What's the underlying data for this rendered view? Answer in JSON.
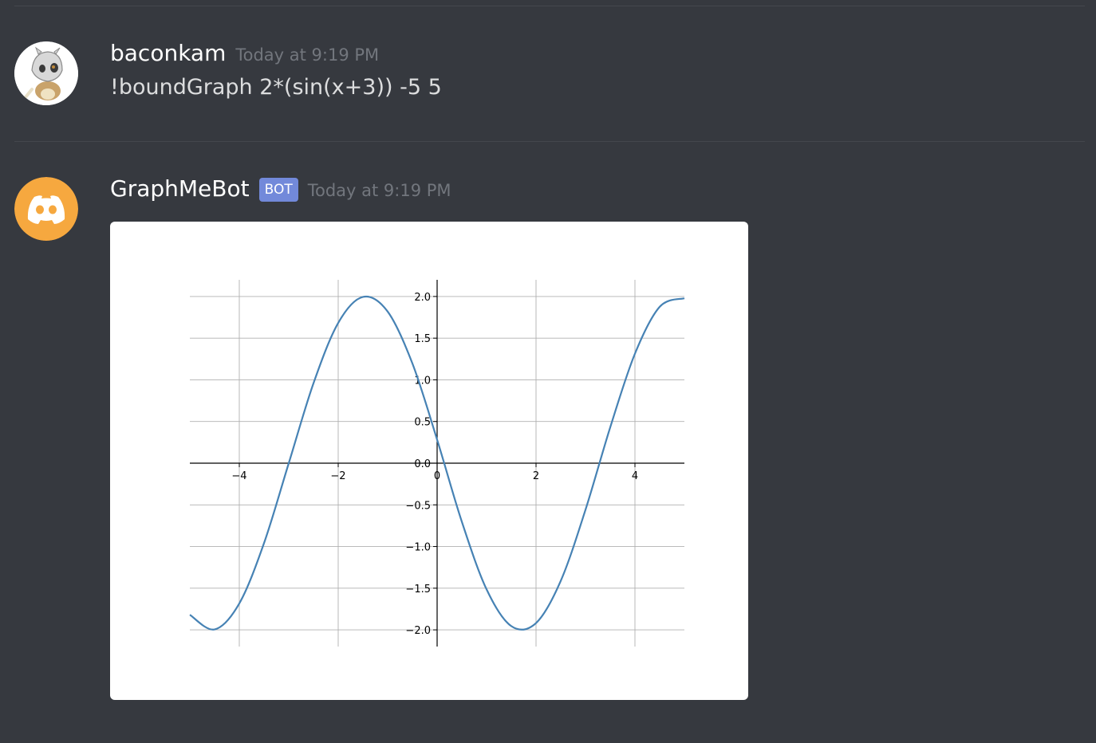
{
  "messages": [
    {
      "author": "baconkam",
      "timestamp": "Today at 9:19 PM",
      "content": "!boundGraph 2*(sin(x+3)) -5 5",
      "avatar_icon": "cubone-avatar-icon"
    },
    {
      "author": "GraphMeBot",
      "bot_tag": "BOT",
      "timestamp": "Today at 9:19 PM",
      "avatar_icon": "discord-logo-icon",
      "avatar_color": "#f6a83f"
    }
  ],
  "chart_data": {
    "type": "line",
    "function": "2*(sin(x+3))",
    "xlim": [
      -5,
      5
    ],
    "ylim": [
      -2.2,
      2.2
    ],
    "xticks": [
      -4,
      -2,
      0,
      2,
      4
    ],
    "xtick_labels": [
      "−4",
      "−2",
      "0",
      "2",
      "4"
    ],
    "yticks": [
      -2.0,
      -1.5,
      -1.0,
      -0.5,
      0.0,
      0.5,
      1.0,
      1.5,
      2.0
    ],
    "ytick_labels": [
      "−2.0",
      "−1.5",
      "−1.0",
      "−0.5",
      "0.0",
      "0.5",
      "1.0",
      "1.5",
      "2.0"
    ],
    "grid": true,
    "spines": "centered",
    "line_color": "#4682b4",
    "series": [
      {
        "x": [
          -5,
          -4.5,
          -4,
          -3.5,
          -3,
          -2.5,
          -2,
          -1.5,
          -1,
          -0.5,
          0,
          0.5,
          1,
          1.5,
          2,
          2.5,
          3,
          3.5,
          4,
          4.5,
          5
        ],
        "values": [
          -1.819,
          -1.995,
          -1.683,
          -0.959,
          0.0,
          0.959,
          1.683,
          1.995,
          1.819,
          1.197,
          0.282,
          -0.703,
          -1.514,
          -1.955,
          -1.918,
          -1.411,
          -0.559,
          0.43,
          1.314,
          1.876,
          1.979
        ]
      }
    ]
  }
}
